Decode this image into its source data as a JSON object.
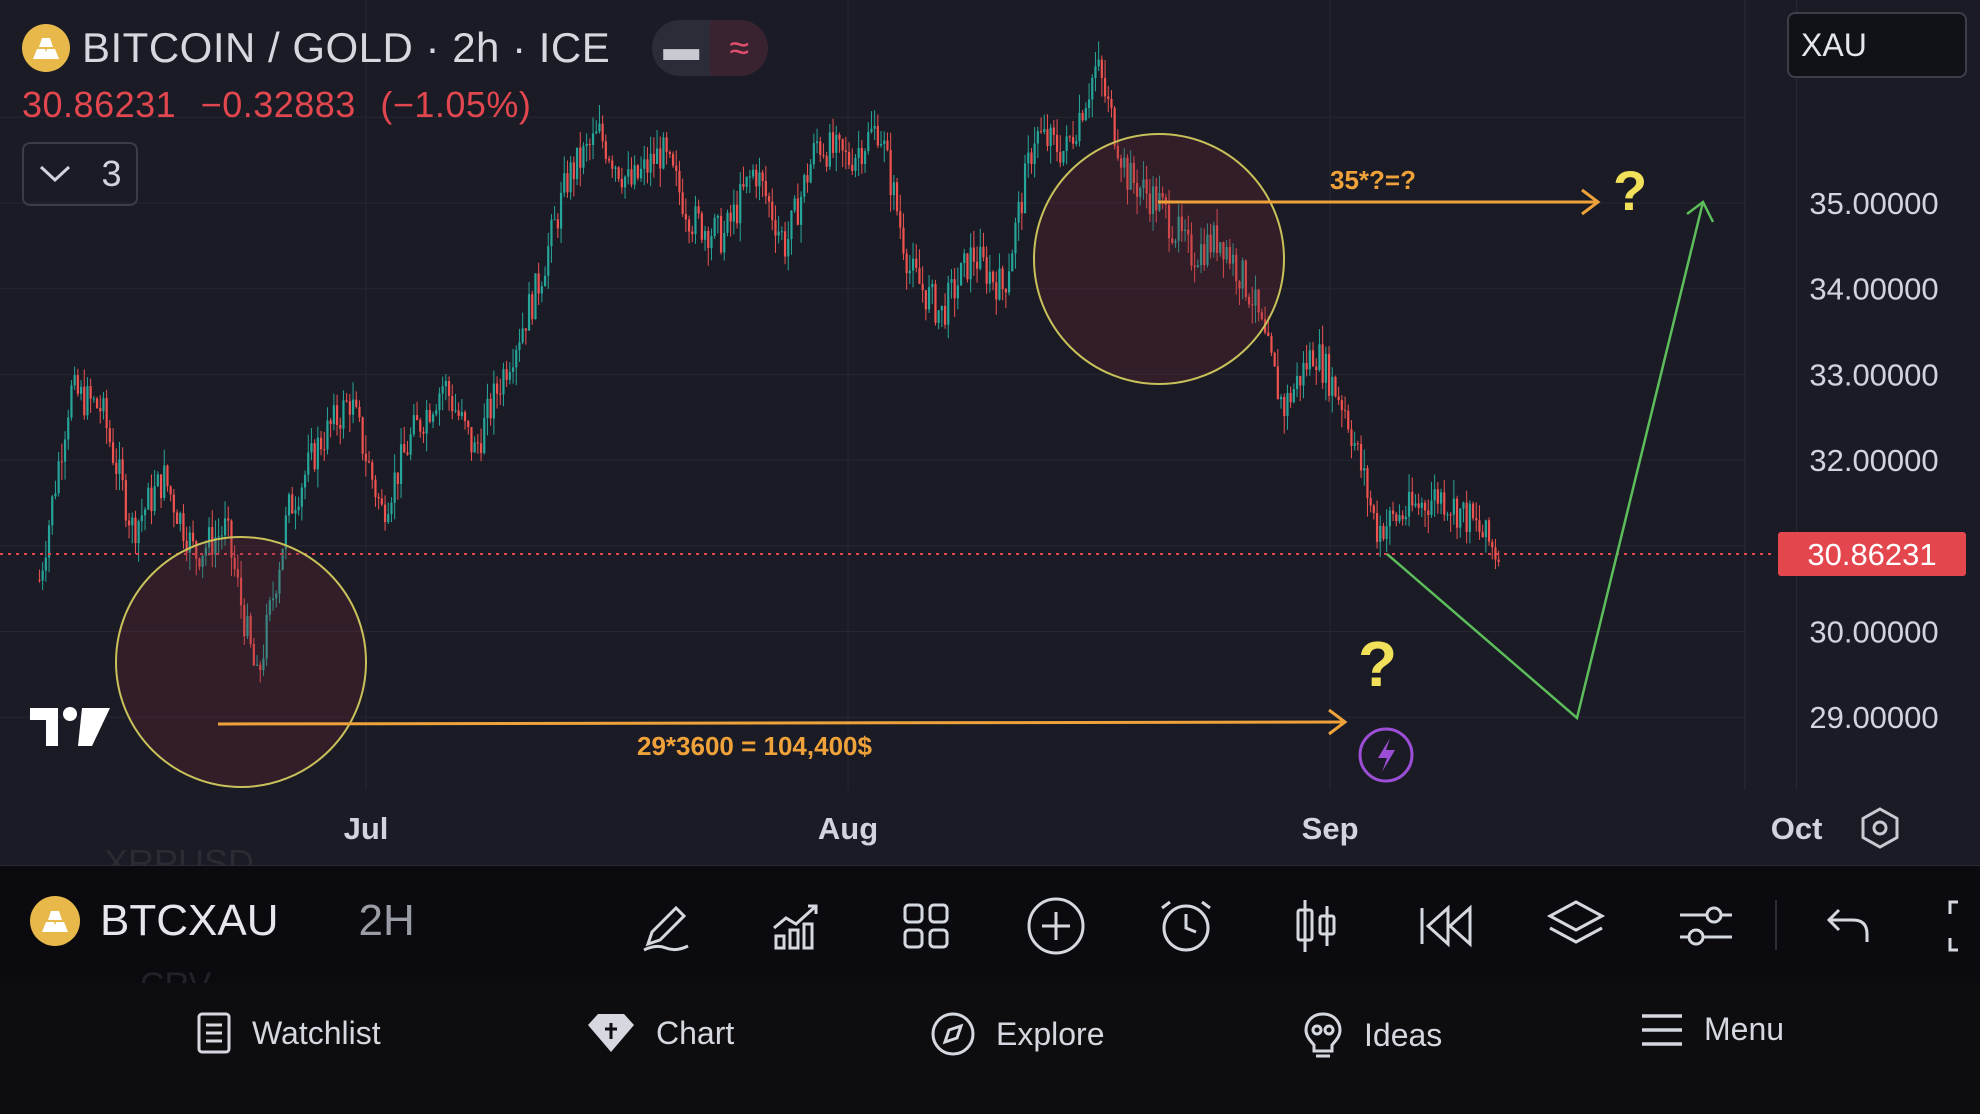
{
  "header": {
    "title": "BITCOIN / GOLD · 2h · ICE",
    "pill_minus": "▬",
    "pill_wave": "≈",
    "last_price": "30.86231",
    "change": "−0.32883",
    "change_pct": "(−1.05%)",
    "collapse_count": "3",
    "symbol_search": "XAU"
  },
  "colors": {
    "up": "#26a69a",
    "down": "#ef5350",
    "annotation": "#f0a23a",
    "circle": "#c9c15a",
    "projection": "#5cbd5a",
    "price_tag": "#e4464e",
    "question": "#f1e05a"
  },
  "chart_data": {
    "type": "candlestick",
    "title": "BITCOIN / GOLD · 2h · ICE",
    "x_tick_labels": [
      "Jul",
      "Aug",
      "Sep",
      "Oct"
    ],
    "y_tick_labels": [
      "35.00000",
      "34.00000",
      "33.00000",
      "32.00000",
      "30.00000",
      "29.00000"
    ],
    "ylim": [
      28.3,
      36.9
    ],
    "current_price_label": "30.86231",
    "price_path": [
      {
        "x": "Jun 10",
        "y": 30.6
      },
      {
        "x": "Jun 12",
        "y": 32.8
      },
      {
        "x": "Jun 14",
        "y": 32.6
      },
      {
        "x": "Jun 16",
        "y": 31.2
      },
      {
        "x": "Jun 18",
        "y": 31.8
      },
      {
        "x": "Jun 20",
        "y": 30.9
      },
      {
        "x": "Jun 22",
        "y": 31.2
      },
      {
        "x": "Jun 24",
        "y": 29.4
      },
      {
        "x": "Jun 26",
        "y": 31.4
      },
      {
        "x": "Jun 28",
        "y": 32.2
      },
      {
        "x": "Jun 30",
        "y": 32.7
      },
      {
        "x": "Jul 2",
        "y": 31.4
      },
      {
        "x": "Jul 4",
        "y": 32.3
      },
      {
        "x": "Jul 6",
        "y": 32.9
      },
      {
        "x": "Jul 8",
        "y": 32.1
      },
      {
        "x": "Jul 10",
        "y": 33.1
      },
      {
        "x": "Jul 12",
        "y": 34.0
      },
      {
        "x": "Jul 14",
        "y": 35.3
      },
      {
        "x": "Jul 16",
        "y": 35.8
      },
      {
        "x": "Jul 18",
        "y": 35.2
      },
      {
        "x": "Jul 20",
        "y": 35.6
      },
      {
        "x": "Jul 22",
        "y": 34.8
      },
      {
        "x": "Jul 24",
        "y": 34.6
      },
      {
        "x": "Jul 26",
        "y": 35.4
      },
      {
        "x": "Jul 28",
        "y": 34.5
      },
      {
        "x": "Jul 30",
        "y": 35.7
      },
      {
        "x": "Aug 1",
        "y": 35.5
      },
      {
        "x": "Aug 3",
        "y": 35.9
      },
      {
        "x": "Aug 5",
        "y": 34.2
      },
      {
        "x": "Aug 7",
        "y": 33.7
      },
      {
        "x": "Aug 9",
        "y": 34.4
      },
      {
        "x": "Aug 11",
        "y": 34.0
      },
      {
        "x": "Aug 13",
        "y": 35.8
      },
      {
        "x": "Aug 15",
        "y": 35.6
      },
      {
        "x": "Aug 17",
        "y": 36.6
      },
      {
        "x": "Aug 19",
        "y": 35.3
      },
      {
        "x": "Aug 21",
        "y": 35.0
      },
      {
        "x": "Aug 23",
        "y": 34.4
      },
      {
        "x": "Aug 25",
        "y": 34.6
      },
      {
        "x": "Aug 27",
        "y": 33.9
      },
      {
        "x": "Aug 29",
        "y": 32.6
      },
      {
        "x": "Aug 31",
        "y": 33.3
      },
      {
        "x": "Sep 2",
        "y": 32.6
      },
      {
        "x": "Sep 4",
        "y": 31.2
      },
      {
        "x": "Sep 6",
        "y": 31.4
      },
      {
        "x": "Sep 8",
        "y": 31.6
      },
      {
        "x": "Sep 10",
        "y": 31.3
      },
      {
        "x": "Sep 12",
        "y": 30.86
      }
    ],
    "projection_path": [
      {
        "x": "Sep 12",
        "y": 30.86
      },
      {
        "x": "Sep 19",
        "y": 29.1
      },
      {
        "x": "Sep 23",
        "y": 35.05
      }
    ],
    "annotations": {
      "upper_text": "35*?=?",
      "lower_text": "29*3600 = 104,400$",
      "question_upper": "?",
      "question_lower": "?"
    }
  },
  "toolbar": {
    "symbol": "BTCXAU",
    "interval": "2H",
    "ghost_top": "XRPUSD",
    "ghost_bottom": "CRV",
    "icons": [
      "draw-icon",
      "indicators-icon",
      "layout-grid-icon",
      "add-icon",
      "alert-icon",
      "chart-type-icon",
      "replay-icon",
      "layers-icon",
      "settings-sliders-icon",
      "undo-icon",
      "fullscreen-icon"
    ]
  },
  "bottom_nav": {
    "watchlist": "Watchlist",
    "chart": "Chart",
    "explore": "Explore",
    "ideas": "Ideas",
    "menu": "Menu"
  }
}
